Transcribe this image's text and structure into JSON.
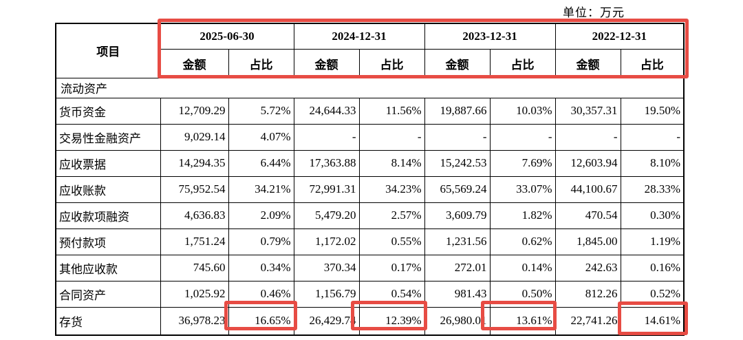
{
  "unit_label": "单位：万元",
  "table": {
    "item_header": "项目",
    "periods": [
      "2025-06-30",
      "2024-12-31",
      "2023-12-31",
      "2022-12-31"
    ],
    "subheaders": {
      "amount": "金额",
      "ratio": "占比"
    },
    "section_header": "流动资产",
    "rows": [
      {
        "item": "货币资金",
        "cells": [
          "12,709.29",
          "5.72%",
          "24,644.33",
          "11.56%",
          "19,887.66",
          "10.03%",
          "30,357.31",
          "19.50%"
        ]
      },
      {
        "item": "交易性金融资产",
        "cells": [
          "9,029.14",
          "4.07%",
          "-",
          "-",
          "-",
          "-",
          "-",
          "-"
        ]
      },
      {
        "item": "应收票据",
        "cells": [
          "14,294.35",
          "6.44%",
          "17,363.88",
          "8.14%",
          "15,242.53",
          "7.69%",
          "12,603.94",
          "8.10%"
        ]
      },
      {
        "item": "应收账款",
        "cells": [
          "75,952.54",
          "34.21%",
          "72,991.31",
          "34.23%",
          "65,569.24",
          "33.07%",
          "44,100.67",
          "28.33%"
        ]
      },
      {
        "item": "应收款项融资",
        "cells": [
          "4,636.83",
          "2.09%",
          "5,479.20",
          "2.57%",
          "3,609.79",
          "1.82%",
          "470.54",
          "0.30%"
        ]
      },
      {
        "item": "预付款项",
        "cells": [
          "1,751.24",
          "0.79%",
          "1,172.02",
          "0.55%",
          "1,231.56",
          "0.62%",
          "1,845.00",
          "1.19%"
        ]
      },
      {
        "item": "其他应收款",
        "cells": [
          "745.60",
          "0.34%",
          "370.34",
          "0.17%",
          "272.01",
          "0.14%",
          "242.63",
          "0.16%"
        ]
      },
      {
        "item": "合同资产",
        "cells": [
          "1,025.92",
          "0.46%",
          "1,156.79",
          "0.54%",
          "981.43",
          "0.50%",
          "812.26",
          "0.52%"
        ]
      },
      {
        "item": "存货",
        "cells": [
          "36,978.23",
          "16.65%",
          "26,429.74",
          "12.39%",
          "26,980.01",
          "13.61%",
          "22,741.26",
          "14.61%"
        ]
      }
    ]
  },
  "annotations": {
    "highlight_color": "#e74c44",
    "highlighted_regions": [
      "period-header-row",
      "存货 占比 2025-06-30",
      "存货 占比 2024-12-31",
      "存货 占比 2023-12-31",
      "存货 占比 2022-12-31"
    ]
  }
}
